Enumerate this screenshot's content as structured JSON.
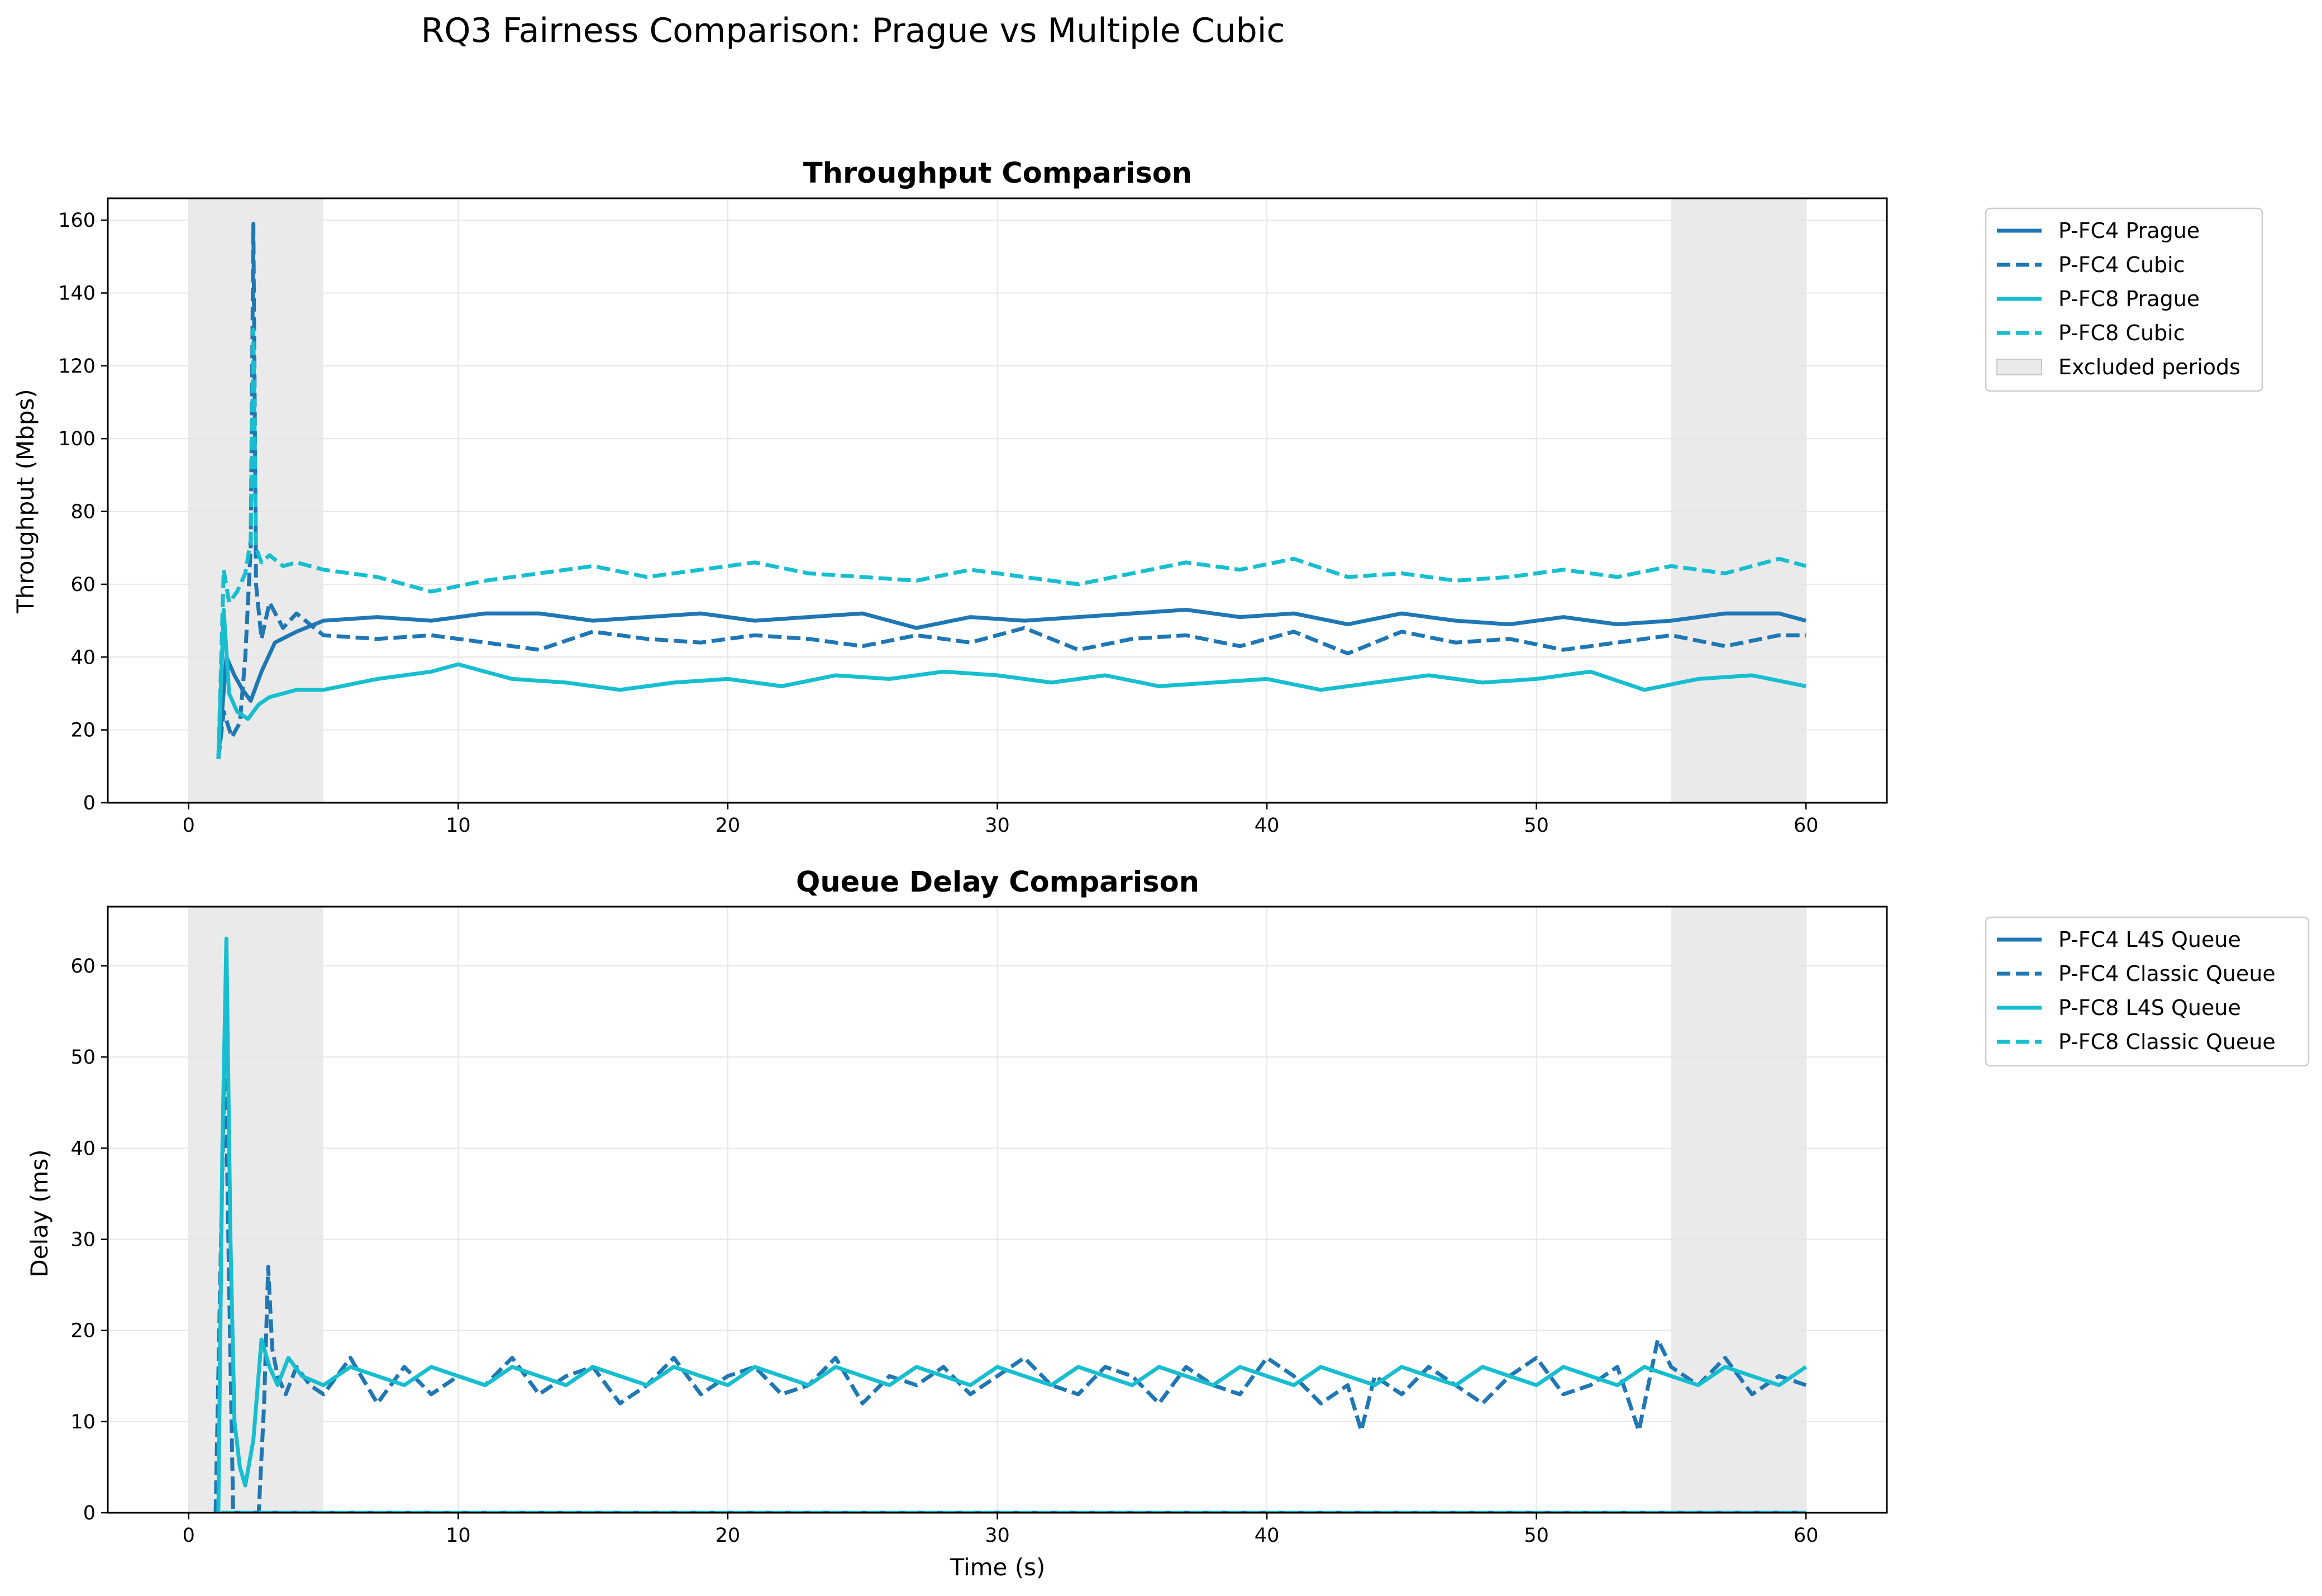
{
  "figure": {
    "title": "RQ3 Fairness Comparison: Prague vs Multiple Cubic"
  },
  "colors": {
    "fc4": "#1f77b4",
    "fc8": "#17becf",
    "excluded": "#d9d9d9",
    "grid": "#e6e6e6"
  },
  "chart_data": [
    {
      "type": "line",
      "title": "Throughput Comparison",
      "xlabel": "",
      "ylabel": "Throughput (Mbps)",
      "xlim": [
        -3,
        63
      ],
      "ylim": [
        0,
        166
      ],
      "xticks": [
        0,
        10,
        20,
        30,
        40,
        50,
        60
      ],
      "yticks": [
        0,
        20,
        40,
        60,
        80,
        100,
        120,
        140,
        160
      ],
      "grid": true,
      "legend_position": "outside-right",
      "excluded_periods": [
        [
          0,
          5
        ],
        [
          55,
          60
        ]
      ],
      "excluded_label": "Excluded periods",
      "series": [
        {
          "name": "P-FC4 Prague",
          "style": "solid",
          "color": "#1f77b4",
          "x": [
            1.1,
            1.4,
            1.7,
            2.0,
            2.3,
            2.7,
            3.2,
            4.0,
            5.0,
            7,
            9,
            11,
            13,
            15,
            17,
            19,
            21,
            23,
            25,
            27,
            29,
            31,
            33,
            35,
            37,
            39,
            41,
            43,
            45,
            47,
            49,
            51,
            53,
            55,
            57,
            59,
            60
          ],
          "y": [
            12,
            40,
            35,
            31,
            28,
            36,
            44,
            47,
            50,
            51,
            50,
            52,
            52,
            50,
            51,
            52,
            50,
            51,
            52,
            48,
            51,
            50,
            51,
            52,
            53,
            51,
            52,
            49,
            52,
            50,
            49,
            51,
            49,
            50,
            52,
            52,
            50
          ]
        },
        {
          "name": "P-FC4 Cubic",
          "style": "dashed",
          "color": "#1f77b4",
          "x": [
            1.1,
            1.3,
            1.6,
            1.9,
            2.1,
            2.3,
            2.4,
            2.5,
            2.7,
            3.0,
            3.5,
            4.0,
            5.0,
            7,
            9,
            11,
            13,
            15,
            17,
            19,
            21,
            23,
            25,
            27,
            29,
            31,
            33,
            35,
            37,
            39,
            41,
            43,
            45,
            47,
            49,
            51,
            53,
            55,
            57,
            59,
            60
          ],
          "y": [
            12,
            25,
            18,
            22,
            40,
            70,
            159,
            60,
            45,
            55,
            48,
            52,
            46,
            45,
            46,
            44,
            42,
            47,
            45,
            44,
            46,
            45,
            43,
            46,
            44,
            48,
            42,
            45,
            46,
            43,
            47,
            41,
            47,
            44,
            45,
            42,
            44,
            46,
            43,
            46,
            46
          ]
        },
        {
          "name": "P-FC8 Prague",
          "style": "solid",
          "color": "#17becf",
          "x": [
            1.1,
            1.3,
            1.5,
            1.8,
            2.2,
            2.6,
            3.0,
            4.0,
            5.0,
            7,
            9,
            10,
            12,
            14,
            16,
            18,
            20,
            22,
            24,
            26,
            28,
            30,
            32,
            34,
            36,
            38,
            40,
            42,
            44,
            46,
            48,
            50,
            52,
            54,
            56,
            58,
            60
          ],
          "y": [
            12,
            53,
            30,
            25,
            23,
            27,
            29,
            31,
            31,
            34,
            36,
            38,
            34,
            33,
            31,
            33,
            34,
            32,
            35,
            34,
            36,
            35,
            33,
            35,
            32,
            33,
            34,
            31,
            33,
            35,
            33,
            34,
            36,
            31,
            34,
            35,
            32
          ]
        },
        {
          "name": "P-FC8 Cubic",
          "style": "dashed",
          "color": "#17becf",
          "x": [
            1.1,
            1.3,
            1.5,
            1.8,
            2.1,
            2.3,
            2.4,
            2.5,
            2.7,
            3.0,
            3.5,
            4.0,
            5.0,
            7,
            9,
            11,
            13,
            15,
            17,
            19,
            21,
            23,
            25,
            27,
            29,
            31,
            33,
            35,
            37,
            39,
            41,
            43,
            45,
            47,
            49,
            51,
            53,
            55,
            57,
            59,
            60
          ],
          "y": [
            12,
            64,
            55,
            58,
            63,
            72,
            130,
            70,
            66,
            68,
            65,
            66,
            64,
            62,
            58,
            61,
            63,
            65,
            62,
            64,
            66,
            63,
            62,
            61,
            64,
            62,
            60,
            63,
            66,
            64,
            67,
            62,
            63,
            61,
            62,
            64,
            62,
            65,
            63,
            67,
            65
          ]
        }
      ]
    },
    {
      "type": "line",
      "title": "Queue Delay Comparison",
      "xlabel": "Time (s)",
      "ylabel": "Delay (ms)",
      "xlim": [
        -3,
        63
      ],
      "ylim": [
        0,
        66.5
      ],
      "xticks": [
        0,
        10,
        20,
        30,
        40,
        50,
        60
      ],
      "yticks": [
        0,
        10,
        20,
        30,
        40,
        50,
        60
      ],
      "grid": true,
      "legend_position": "outside-right",
      "excluded_periods": [
        [
          0,
          5
        ],
        [
          55,
          60
        ]
      ],
      "series": [
        {
          "name": "P-FC4 L4S Queue",
          "style": "solid",
          "color": "#1f77b4",
          "x": [
            1.2,
            1.5,
            2.5,
            4.0,
            5.0,
            60
          ],
          "y": [
            0,
            0,
            0,
            0,
            0,
            0
          ]
        },
        {
          "name": "P-FC4 Classic Queue",
          "style": "dashed",
          "color": "#1f77b4",
          "x": [
            1.0,
            1.2,
            1.35,
            1.5,
            1.65,
            1.8,
            2.0,
            2.3,
            2.6,
            2.8,
            2.95,
            3.1,
            3.3,
            3.6,
            4.0,
            4.5,
            5,
            6,
            7,
            8,
            9,
            10,
            11,
            12,
            13,
            14,
            15,
            16,
            17,
            18,
            19,
            20,
            21,
            22,
            23,
            24,
            25,
            26,
            27,
            28,
            29,
            30,
            31,
            32,
            33,
            34,
            35,
            36,
            37,
            38,
            39,
            40,
            41,
            42,
            43,
            43.5,
            44,
            45,
            46,
            47,
            48,
            49,
            50,
            51,
            52,
            53,
            53.8,
            54.5,
            55,
            56,
            57,
            58,
            59,
            60
          ],
          "y": [
            0,
            30,
            52,
            25,
            0,
            0,
            0,
            0,
            0,
            12,
            27,
            18,
            15,
            13,
            16,
            14,
            13,
            17,
            12,
            16,
            13,
            15,
            14,
            17,
            13,
            15,
            16,
            12,
            14,
            17,
            13,
            15,
            16,
            13,
            14,
            17,
            12,
            15,
            14,
            16,
            13,
            15,
            17,
            14,
            13,
            16,
            15,
            12,
            16,
            14,
            13,
            17,
            15,
            12,
            14,
            9,
            15,
            13,
            16,
            14,
            12,
            15,
            17,
            13,
            14,
            16,
            9,
            19,
            16,
            14,
            17,
            13,
            15,
            14
          ]
        },
        {
          "name": "P-FC8 L4S Queue",
          "style": "solid",
          "color": "#17becf",
          "x": [
            1.1,
            1.25,
            1.4,
            1.55,
            1.7,
            1.9,
            2.1,
            2.4,
            2.7,
            3.0,
            3.3,
            3.7,
            4.2,
            5,
            6,
            7,
            8,
            9,
            10,
            11,
            12,
            13,
            14,
            15,
            16,
            17,
            18,
            19,
            20,
            21,
            22,
            23,
            24,
            25,
            26,
            27,
            28,
            29,
            30,
            31,
            32,
            33,
            34,
            35,
            36,
            37,
            38,
            39,
            40,
            41,
            42,
            43,
            44,
            45,
            46,
            47,
            48,
            49,
            50,
            51,
            52,
            53,
            54,
            55,
            56,
            57,
            58,
            59,
            60
          ],
          "y": [
            0,
            40,
            63,
            30,
            10,
            5,
            3,
            8,
            19,
            16,
            14,
            17,
            15,
            14,
            16,
            15,
            14,
            16,
            15,
            14,
            16,
            15,
            14,
            16,
            15,
            14,
            16,
            15,
            14,
            16,
            15,
            14,
            16,
            15,
            14,
            16,
            15,
            14,
            16,
            15,
            14,
            16,
            15,
            14,
            16,
            15,
            14,
            16,
            15,
            14,
            16,
            15,
            14,
            16,
            15,
            14,
            16,
            15,
            14,
            16,
            15,
            14,
            16,
            15,
            14,
            16,
            15,
            14,
            16
          ]
        },
        {
          "name": "P-FC8 Classic Queue",
          "style": "dashed",
          "color": "#17becf",
          "x": [
            1.2,
            1.5,
            2.5,
            4.0,
            5.0,
            60
          ],
          "y": [
            0,
            0,
            0,
            0,
            0,
            0
          ]
        }
      ]
    }
  ]
}
